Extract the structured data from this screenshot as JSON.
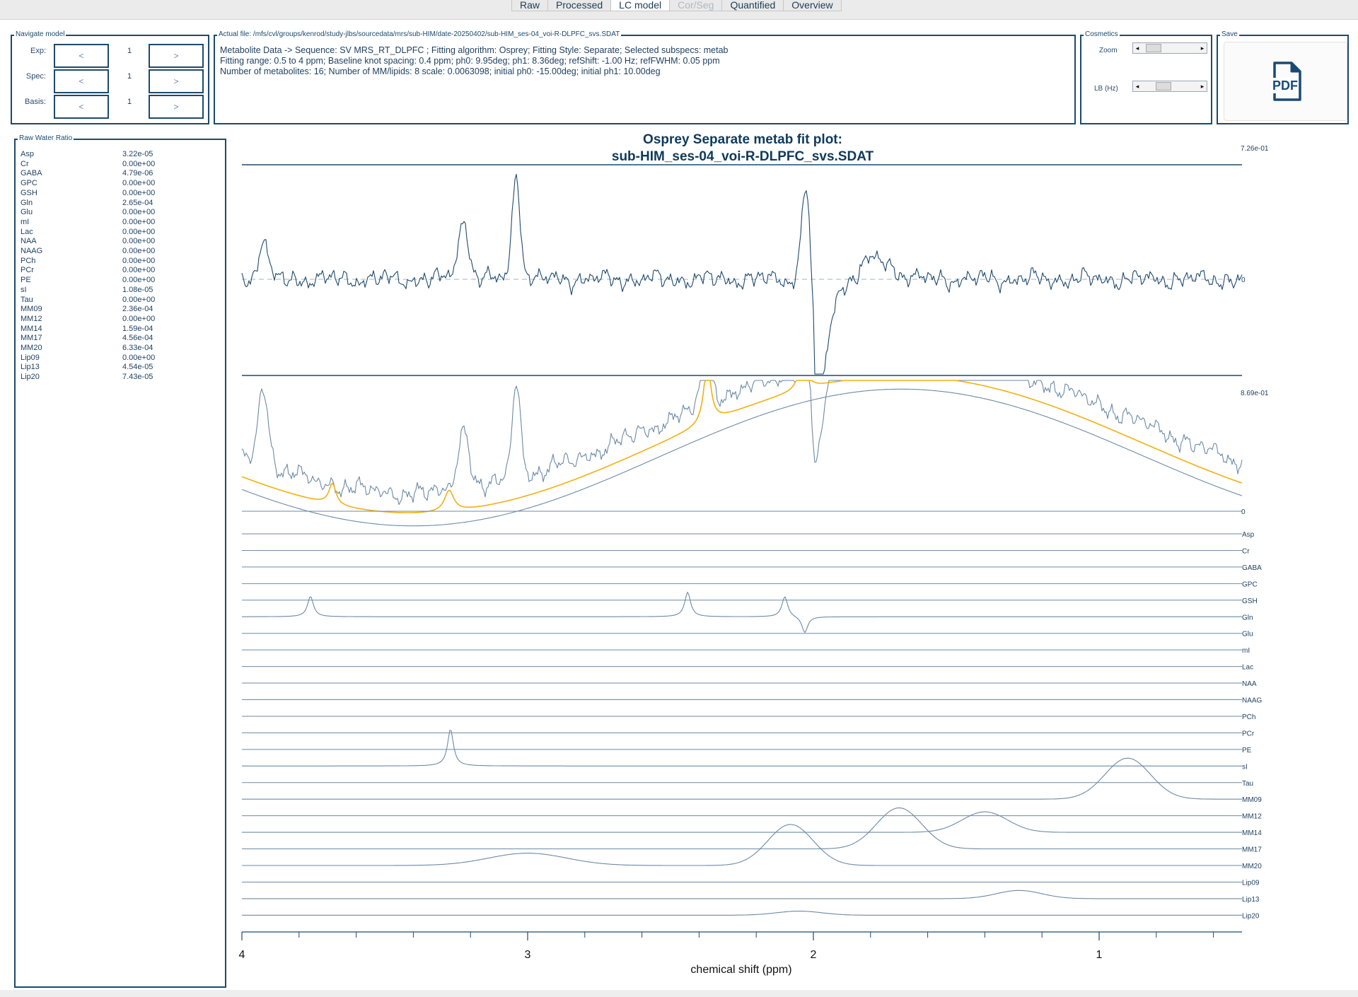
{
  "tabs": [
    {
      "label": "Raw",
      "state": "normal"
    },
    {
      "label": "Processed",
      "state": "normal"
    },
    {
      "label": "LC model",
      "state": "active"
    },
    {
      "label": "Cor/Seg",
      "state": "disabled"
    },
    {
      "label": "Quantified",
      "state": "normal"
    },
    {
      "label": "Overview",
      "state": "normal"
    }
  ],
  "navigate": {
    "title": "Navigate model",
    "rows": [
      {
        "label": "Exp:",
        "value": "1",
        "prev": "<",
        "next": ">"
      },
      {
        "label": "Spec:",
        "value": "1",
        "prev": "<",
        "next": ">"
      },
      {
        "label": "Basis:",
        "value": "1",
        "prev": "<",
        "next": ">"
      }
    ]
  },
  "file": {
    "title": "Actual file: /mfs/cvl/groups/kenrod/study-jlbs/sourcedata/mrs/sub-HIM/date-20250402/sub-HIM_ses-04_voi-R-DLPFC_svs.SDAT",
    "lines": [
      "Metabolite Data -> Sequence: SV MRS_RT_DLPFC ; Fitting algorithm: Osprey; Fitting Style: Separate; Selected subspecs: metab",
      "Fitting range: 0.5 to 4 ppm; Baseline knot spacing: 0.4 ppm; ph0: 9.95deg; ph1: 8.36deg; refShift: -1.00 Hz; refFWHM: 0.05 ppm",
      "Number of metabolites: 16; Number of MM/lipids: 8 scale: 0.0063098; initial ph0: -15.00deg; initial ph1: 10.00deg"
    ]
  },
  "cosmetics": {
    "title": "Cosmetics",
    "zoom_label": "Zoom",
    "lb_label": "LB (Hz)",
    "zoom_level": 0.1,
    "lb_level": 0.35
  },
  "save": {
    "title": "Save",
    "button_label": "PDF"
  },
  "ratio": {
    "title": "Raw Water Ratio",
    "rows": [
      {
        "name": "Asp",
        "value": "3.22e-05"
      },
      {
        "name": "Cr",
        "value": "0.00e+00"
      },
      {
        "name": "GABA",
        "value": "4.79e-06"
      },
      {
        "name": "GPC",
        "value": "0.00e+00"
      },
      {
        "name": "GSH",
        "value": "0.00e+00"
      },
      {
        "name": "Gln",
        "value": "2.65e-04"
      },
      {
        "name": "Glu",
        "value": "0.00e+00"
      },
      {
        "name": "mI",
        "value": "0.00e+00"
      },
      {
        "name": "Lac",
        "value": "0.00e+00"
      },
      {
        "name": "NAA",
        "value": "0.00e+00"
      },
      {
        "name": "NAAG",
        "value": "0.00e+00"
      },
      {
        "name": "PCh",
        "value": "0.00e+00"
      },
      {
        "name": "PCr",
        "value": "0.00e+00"
      },
      {
        "name": "PE",
        "value": "0.00e+00"
      },
      {
        "name": "sI",
        "value": "1.08e-05"
      },
      {
        "name": "Tau",
        "value": "0.00e+00"
      },
      {
        "name": "MM09",
        "value": "2.36e-04"
      },
      {
        "name": "MM12",
        "value": "0.00e+00"
      },
      {
        "name": "MM14",
        "value": "1.59e-04"
      },
      {
        "name": "MM17",
        "value": "4.56e-04"
      },
      {
        "name": "MM20",
        "value": "6.33e-04"
      },
      {
        "name": "Lip09",
        "value": "0.00e+00"
      },
      {
        "name": "Lip13",
        "value": "4.54e-05"
      },
      {
        "name": "Lip20",
        "value": "7.43e-05"
      }
    ]
  },
  "plot": {
    "title_line1": "Osprey Separate metab fit plot:",
    "title_line2": "sub-HIM_ses-04_voi-R-DLPFC_svs.SDAT",
    "residual_max_label": "7.26e-01",
    "residual_zero_label": "0",
    "fit_max_label": "8.69e-01",
    "fit_zero_label": "0"
  },
  "colors": {
    "data": "#1f4a6e",
    "basis": "#6c8aa5",
    "fit": "#f2b010",
    "frame": "#1d4a6b"
  },
  "chart_data": {
    "type": "line",
    "title": "Osprey Separate metab fit plot: sub-HIM_ses-04_voi-R-DLPFC_svs.SDAT",
    "xlabel": "chemical shift (ppm)",
    "xlim": [
      4,
      0.5
    ],
    "xticks": [
      4,
      3,
      2,
      1
    ],
    "series": [
      {
        "name": "Asp"
      },
      {
        "name": "Cr"
      },
      {
        "name": "GABA"
      },
      {
        "name": "GPC"
      },
      {
        "name": "GSH"
      },
      {
        "name": "Gln"
      },
      {
        "name": "Glu"
      },
      {
        "name": "mI"
      },
      {
        "name": "Lac"
      },
      {
        "name": "NAA"
      },
      {
        "name": "NAAG"
      },
      {
        "name": "PCh"
      },
      {
        "name": "PCr"
      },
      {
        "name": "PE"
      },
      {
        "name": "sI"
      },
      {
        "name": "Tau"
      },
      {
        "name": "MM09"
      },
      {
        "name": "MM12"
      },
      {
        "name": "MM14"
      },
      {
        "name": "MM17"
      },
      {
        "name": "MM20"
      },
      {
        "name": "Lip09"
      },
      {
        "name": "Lip13"
      },
      {
        "name": "Lip20"
      }
    ],
    "basis_peaks": {
      "Gln": [
        [
          3.76,
          0.5
        ],
        [
          2.44,
          0.6
        ],
        [
          2.1,
          0.5
        ],
        [
          2.03,
          -0.4
        ]
      ],
      "sI": [
        [
          3.27,
          0.9
        ]
      ],
      "MM09": [
        [
          0.9,
          1.0
        ]
      ],
      "MM14": [
        [
          1.4,
          0.5
        ]
      ],
      "MM17": [
        [
          1.7,
          1.0
        ]
      ],
      "MM20": [
        [
          2.08,
          1.0
        ],
        [
          3.0,
          0.3
        ]
      ],
      "Lip13": [
        [
          1.28,
          0.2
        ]
      ],
      "Lip20": [
        [
          2.05,
          0.1
        ]
      ]
    },
    "grid": false,
    "legend": "right"
  }
}
